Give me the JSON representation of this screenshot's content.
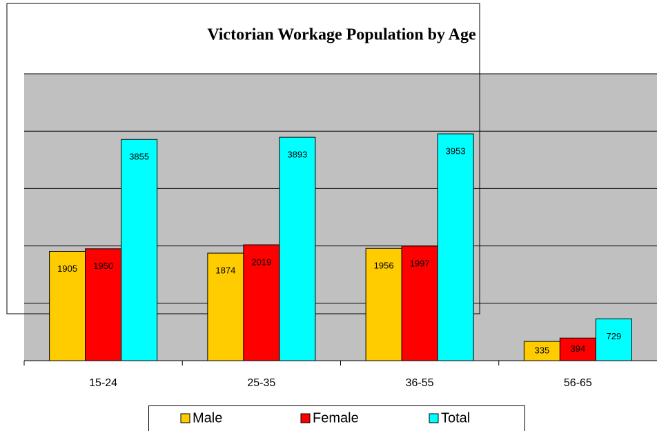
{
  "chart_data": {
    "type": "bar",
    "title": "Victorian Workage Population by Age",
    "categories": [
      "15-24",
      "25-35",
      "36-55",
      "56-65"
    ],
    "series": [
      {
        "name": "Male",
        "color": "#ffcc00",
        "values": [
          1905,
          1874,
          1956,
          335
        ]
      },
      {
        "name": "Female",
        "color": "#ff0000",
        "values": [
          1950,
          2019,
          1997,
          394
        ]
      },
      {
        "name": "Total",
        "color": "#00ffff",
        "values": [
          3855,
          3893,
          3953,
          729
        ]
      }
    ],
    "ylim": [
      0,
      5000
    ],
    "yticks": [
      0,
      1000,
      2000,
      3000,
      4000,
      5000
    ],
    "grid": true,
    "legend": "bottom"
  }
}
